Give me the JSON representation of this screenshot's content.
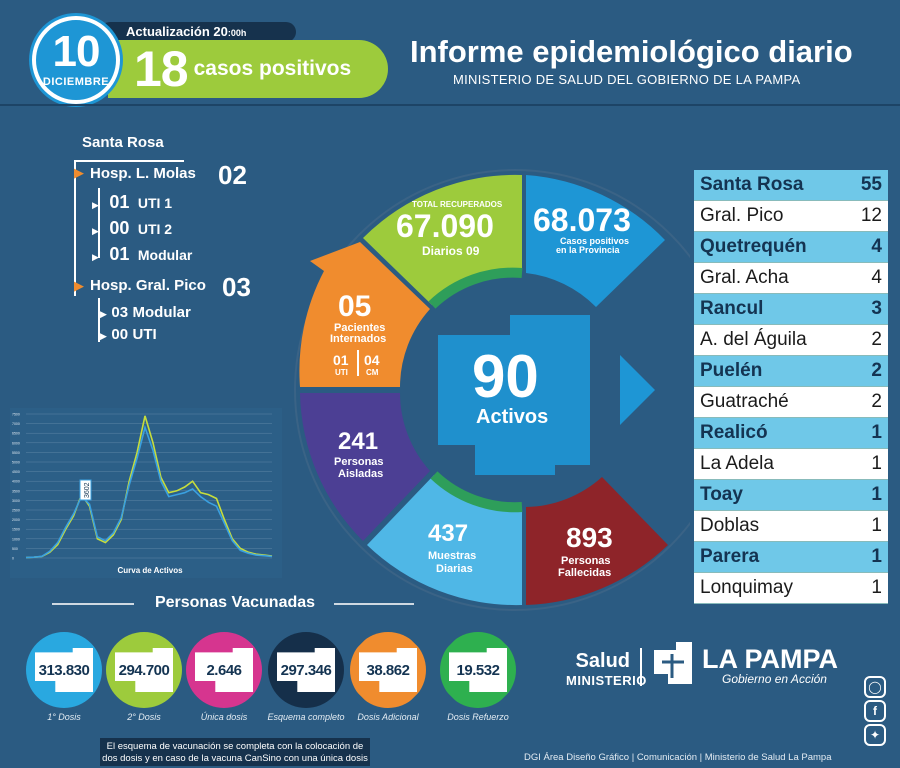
{
  "header": {
    "day": "10",
    "month": "DICIEMBRE",
    "update_label": "Actualización",
    "update_time": "20",
    "update_time_suffix": ":00h",
    "cases_count": "18",
    "cases_label": "casos positivos",
    "title": "Informe epidemiológico diario",
    "subtitle": "MINISTERIO DE SALUD DEL GOBIERNO DE LA PAMPA"
  },
  "hospitals": {
    "city": "Santa Rosa",
    "molas": {
      "name": "Hosp. L. Molas",
      "count": "02",
      "items": [
        {
          "count": "01",
          "label": "UTI 1"
        },
        {
          "count": "00",
          "label": "UTI 2"
        },
        {
          "count": "01",
          "label": "Modular"
        }
      ]
    },
    "pico": {
      "name": "Hosp. Gral. Pico",
      "count": "03",
      "items": [
        {
          "count": "03",
          "label": "Modular"
        },
        {
          "count": "00",
          "label": "UTI"
        }
      ]
    }
  },
  "chart_data": {
    "type": "line",
    "title": "Curva de Activos",
    "marker_label": "3602",
    "y_ticks": [
      "7500",
      "7000",
      "6500",
      "6000",
      "5500",
      "5000",
      "4500",
      "4000",
      "3500",
      "3000",
      "2500",
      "2000",
      "1500",
      "1000",
      "500",
      "0"
    ],
    "ylim": [
      0,
      7500
    ],
    "series": [
      {
        "color": "#c7dd3c",
        "values": [
          20,
          40,
          80,
          300,
          700,
          1500,
          2200,
          3300,
          2700,
          1000,
          800,
          1200,
          2000,
          4000,
          5500,
          7400,
          6000,
          4200,
          3400,
          3500,
          3700,
          4000,
          3400,
          3300,
          3100,
          2000,
          1000,
          500,
          300,
          200,
          150,
          100
        ]
      },
      {
        "color": "#3aa0e0",
        "values": [
          20,
          40,
          90,
          350,
          800,
          1600,
          2300,
          3200,
          2800,
          1100,
          900,
          1300,
          2100,
          3800,
          5200,
          6800,
          5600,
          4000,
          3200,
          3300,
          3400,
          3600,
          3200,
          2900,
          2700,
          1800,
          900,
          400,
          250,
          150,
          120,
          80
        ]
      }
    ]
  },
  "center": {
    "active": "90",
    "active_label": "Activos",
    "recovered_top": "TOTAL RECUPERADOS",
    "recovered": "67.090",
    "recovered_daily": "Diarios 09",
    "positives": "68.073",
    "positives_label_1": "Casos positivos",
    "positives_label_2": "en la Provincia",
    "hospitalized": "05",
    "hospitalized_label_1": "Pacientes",
    "hospitalized_label_2": "Internados",
    "uti": "01",
    "uti_label": "UTI",
    "cm": "04",
    "cm_label": "CM",
    "isolated": "241",
    "isolated_label_1": "Personas",
    "isolated_label_2": "Aisladas",
    "samples": "437",
    "samples_label_1": "Muestras",
    "samples_label_2": "Diarias",
    "deaths": "893",
    "deaths_label_1": "Personas",
    "deaths_label_2": "Fallecidas"
  },
  "table": [
    {
      "city": "Santa Rosa",
      "count": "55"
    },
    {
      "city": "Gral. Pico",
      "count": "12"
    },
    {
      "city": "Quetrequén",
      "count": "4"
    },
    {
      "city": "Gral. Acha",
      "count": "4"
    },
    {
      "city": "Rancul",
      "count": "3"
    },
    {
      "city": "A. del Águila",
      "count": "2"
    },
    {
      "city": "Puelén",
      "count": "2"
    },
    {
      "city": "Guatraché",
      "count": "2"
    },
    {
      "city": "Realicó",
      "count": "1"
    },
    {
      "city": "La Adela",
      "count": "1"
    },
    {
      "city": "Toay",
      "count": "1"
    },
    {
      "city": "Doblas",
      "count": "1"
    },
    {
      "city": "Parera",
      "count": "1"
    },
    {
      "city": "Lonquimay",
      "count": "1"
    }
  ],
  "vaccines": {
    "title": "Personas Vacunadas",
    "items": [
      {
        "value": "313.830",
        "label": "1° Dosis",
        "color": "#29a8e0"
      },
      {
        "value": "294.700",
        "label": "2° Dosis",
        "color": "#9dcb3c"
      },
      {
        "value": "2.646",
        "label": "Única dosis",
        "color": "#d6358f"
      },
      {
        "value": "297.346",
        "label": "Esquema completo",
        "color": "#152f4a"
      },
      {
        "value": "38.862",
        "label": "Dosis Adicional",
        "color": "#f08c2e"
      },
      {
        "value": "19.532",
        "label": "Dosis Refuerzo",
        "color": "#2eb04f"
      }
    ],
    "note_1": "El esquema de vacunación se completa con la colocación de",
    "note_2": "dos dosis y en caso de la vacuna CanSino con una única dosis"
  },
  "brand": {
    "salud": "Salud",
    "ministerio": "MINISTERIO",
    "province": "LA PAMPA",
    "slogan": "Gobierno en Acción"
  },
  "credits": "DGI Área Diseño Gráfico  | Comunicación  | Ministerio de Salud La Pampa"
}
